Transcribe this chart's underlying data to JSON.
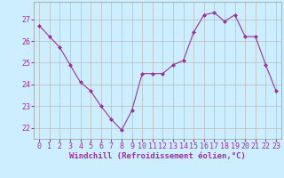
{
  "x": [
    0,
    1,
    2,
    3,
    4,
    5,
    6,
    7,
    8,
    9,
    10,
    11,
    12,
    13,
    14,
    15,
    16,
    17,
    18,
    19,
    20,
    21,
    22,
    23
  ],
  "y": [
    26.7,
    26.2,
    25.7,
    24.9,
    24.1,
    23.7,
    23.0,
    22.4,
    21.9,
    22.8,
    24.5,
    24.5,
    24.5,
    24.9,
    25.1,
    26.4,
    27.2,
    27.3,
    26.9,
    27.2,
    26.2,
    26.2,
    24.9,
    23.7
  ],
  "line_color": "#993399",
  "marker": "D",
  "marker_size": 2.0,
  "bg_color": "#cceeff",
  "grid_color": "#bbbbbb",
  "xlabel": "Windchill (Refroidissement éolien,°C)",
  "ylim": [
    21.5,
    27.8
  ],
  "yticks": [
    22,
    23,
    24,
    25,
    26,
    27
  ],
  "xticks": [
    0,
    1,
    2,
    3,
    4,
    5,
    6,
    7,
    8,
    9,
    10,
    11,
    12,
    13,
    14,
    15,
    16,
    17,
    18,
    19,
    20,
    21,
    22,
    23
  ],
  "tick_fontsize": 6.0,
  "xlabel_fontsize": 6.5,
  "linewidth": 0.8
}
